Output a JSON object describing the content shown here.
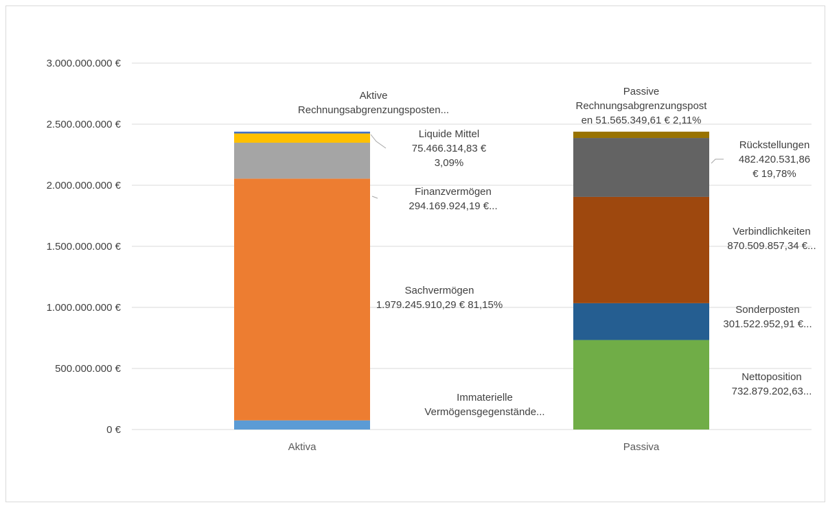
{
  "chart_data": {
    "type": "bar",
    "stacked": true,
    "categories": [
      "Aktiva",
      "Passiva"
    ],
    "ylim": [
      0,
      3000000000
    ],
    "y_ticks": [
      {
        "value": 0,
        "label": "0 €"
      },
      {
        "value": 500000000,
        "label": "500.000.000 €"
      },
      {
        "value": 1000000000,
        "label": "1.000.000.000 €"
      },
      {
        "value": 1500000000,
        "label": "1.500.000.000 €"
      },
      {
        "value": 2000000000,
        "label": "2.000.000.000 €"
      },
      {
        "value": 2500000000,
        "label": "2.500.000.000 €"
      },
      {
        "value": 3000000000,
        "label": "3.000.000.000 €"
      }
    ],
    "grid": true,
    "legend": "none",
    "series": [
      {
        "name": "Immaterielle Vermögensgegenstände",
        "category": "Aktiva",
        "value": 75000000,
        "color": "#5b9bd5",
        "label_lines": [
          "Immaterielle",
          "Vermögensgegenstände..."
        ]
      },
      {
        "name": "Sachvermögen",
        "category": "Aktiva",
        "value": 1979245910.29,
        "color": "#ed7d31",
        "label_lines": [
          "Sachvermögen",
          "1.979.245.910,29 € 81,15%"
        ]
      },
      {
        "name": "Finanzvermögen",
        "category": "Aktiva",
        "value": 294169924.19,
        "color": "#a5a5a5",
        "label_lines": [
          "Finanzvermögen",
          "294.169.924,19 €..."
        ]
      },
      {
        "name": "Liquide Mittel",
        "category": "Aktiva",
        "value": 75466314.83,
        "color": "#ffc000",
        "label_lines": [
          "Liquide Mittel",
          "75.466.314,83 €",
          "3,09%"
        ]
      },
      {
        "name": "Aktive Rechnungsabgrenzungsposten",
        "category": "Aktiva",
        "value": 15000000,
        "color": "#4472c4",
        "label_lines": [
          "Aktive",
          "Rechnungsabgrenzungsposten..."
        ]
      },
      {
        "name": "Nettoposition",
        "category": "Passiva",
        "value": 732879202.63,
        "color": "#70ad47",
        "label_lines": [
          "Nettoposition",
          "732.879.202,63..."
        ]
      },
      {
        "name": "Sonderposten",
        "category": "Passiva",
        "value": 301522952.91,
        "color": "#255e91",
        "label_lines": [
          "Sonderposten",
          "301.522.952,91 €..."
        ]
      },
      {
        "name": "Verbindlichkeiten",
        "category": "Passiva",
        "value": 870509857.34,
        "color": "#9e480e",
        "label_lines": [
          "Verbindlichkeiten",
          "870.509.857,34 €..."
        ]
      },
      {
        "name": "Rückstellungen",
        "category": "Passiva",
        "value": 482420531.86,
        "color": "#636363",
        "label_lines": [
          "Rückstellungen",
          "482.420.531,86",
          "€ 19,78%"
        ]
      },
      {
        "name": "Passive Rechnungsabgrenzungsposten",
        "category": "Passiva",
        "value": 51565349.61,
        "color": "#997300",
        "label_lines": [
          "Passive",
          "Rechnungsabgrenzungspost",
          "en 51.565.349,61 € 2,11%"
        ]
      }
    ]
  }
}
